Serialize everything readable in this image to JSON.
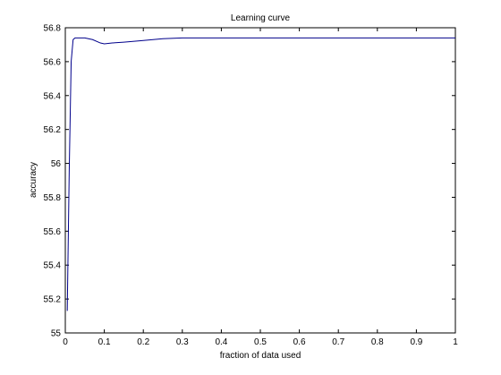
{
  "chart_data": {
    "type": "line",
    "title": "Learning curve",
    "xlabel": "fraction of data used",
    "ylabel": "accuracy",
    "xlim": [
      0,
      1
    ],
    "ylim": [
      55,
      56.8
    ],
    "xticks": [
      0,
      0.1,
      0.2,
      0.3,
      0.4,
      0.5,
      0.6,
      0.7,
      0.8,
      0.9,
      1
    ],
    "yticks": [
      55,
      55.2,
      55.4,
      55.6,
      55.8,
      56,
      56.2,
      56.4,
      56.6,
      56.8
    ],
    "xtick_labels": [
      "0",
      "0.1",
      "0.2",
      "0.3",
      "0.4",
      "0.5",
      "0.6",
      "0.7",
      "0.8",
      "0.9",
      "1"
    ],
    "ytick_labels": [
      "55",
      "55.2",
      "55.4",
      "55.6",
      "55.8",
      "56",
      "56.2",
      "56.4",
      "56.6",
      "56.8"
    ],
    "grid": false,
    "series": [
      {
        "color": "#00008b",
        "x": [
          0.005,
          0.01,
          0.015,
          0.02,
          0.025,
          0.05,
          0.07,
          0.09,
          0.1,
          0.12,
          0.15,
          0.2,
          0.25,
          0.3,
          0.4,
          0.5,
          0.6,
          0.7,
          0.8,
          0.9,
          1.0
        ],
        "y": [
          55.13,
          55.95,
          56.6,
          56.73,
          56.74,
          56.74,
          56.73,
          56.71,
          56.705,
          56.71,
          56.715,
          56.725,
          56.735,
          56.74,
          56.74,
          56.74,
          56.74,
          56.74,
          56.74,
          56.74,
          56.74
        ]
      }
    ]
  }
}
